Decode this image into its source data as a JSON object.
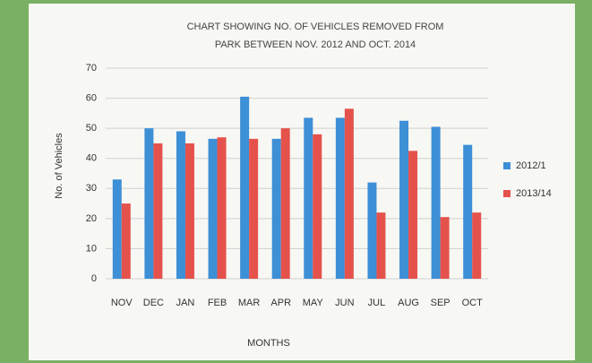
{
  "chart_data": {
    "type": "bar",
    "title": [
      "CHART SHOWING NO. OF VEHICLES REMOVED FROM",
      "PARK BETWEEN NOV. 2012 AND OCT. 2014"
    ],
    "x_label": "MONTHS",
    "y_label": "No. of Vehicles",
    "categories": [
      "NOV",
      "DEC",
      "JAN",
      "FEB",
      "MAR",
      "APR",
      "MAY",
      "JUN",
      "JUL",
      "AUG",
      "SEP",
      "OCT"
    ],
    "series": [
      {
        "name": "2012/1",
        "color": "#3d8fd6",
        "values": [
          33,
          50,
          49,
          46.5,
          60.5,
          46.5,
          53.5,
          53.5,
          32,
          52.5,
          50.5,
          44.5
        ]
      },
      {
        "name": "2013/14",
        "color": "#e5524c",
        "values": [
          25,
          45,
          45,
          47,
          46.5,
          50,
          48,
          56.5,
          22,
          42.5,
          20.5,
          22
        ]
      }
    ],
    "ylim": [
      0,
      70
    ],
    "yticks": [
      0,
      10,
      20,
      30,
      40,
      50,
      60,
      70
    ],
    "grid": true,
    "legend": "right"
  }
}
